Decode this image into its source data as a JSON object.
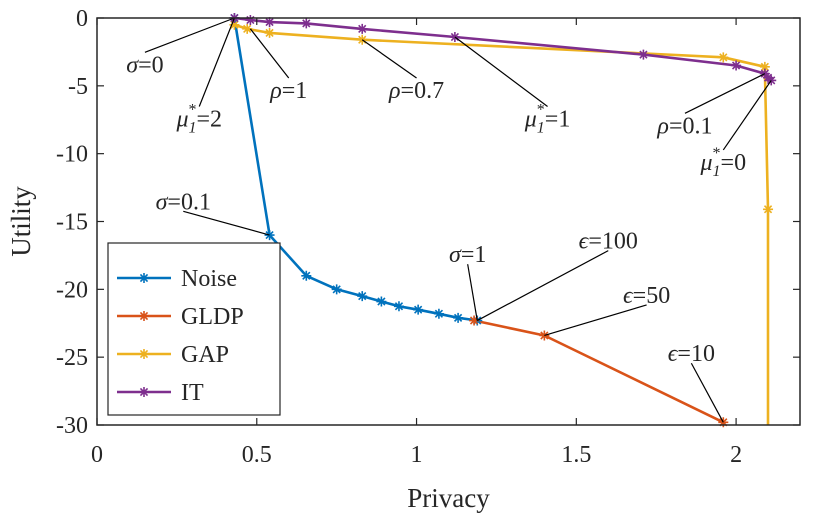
{
  "chart_data": {
    "type": "line",
    "title": "",
    "xlabel": "Privacy",
    "ylabel": "Utility",
    "xlim": [
      0,
      2.2
    ],
    "ylim": [
      -30,
      0
    ],
    "xticks": [
      0,
      0.5,
      1,
      1.5,
      2
    ],
    "xtick_labels": [
      "0",
      "0.5",
      "1",
      "1.5",
      "2"
    ],
    "yticks": [
      0,
      -5,
      -10,
      -15,
      -20,
      -25,
      -30
    ],
    "ytick_labels": [
      "0",
      "-5",
      "-10",
      "-15",
      "-20",
      "-25",
      "-30"
    ],
    "grid": false,
    "legend_position": "bottom-left",
    "series": [
      {
        "name": "Noise",
        "color": "#0072BD",
        "marker": "asterisk",
        "x": [
          0.43,
          0.54,
          0.655,
          0.75,
          0.83,
          0.89,
          0.945,
          1.005,
          1.07,
          1.13,
          1.19
        ],
        "y": [
          0,
          -16.0,
          -19.0,
          -20.0,
          -20.5,
          -20.9,
          -21.25,
          -21.5,
          -21.8,
          -22.1,
          -22.3
        ]
      },
      {
        "name": "GLDP",
        "color": "#D95319",
        "marker": "asterisk",
        "x": [
          1.18,
          1.4,
          1.96
        ],
        "y": [
          -22.3,
          -23.4,
          -29.8
        ]
      },
      {
        "name": "GAP",
        "color": "#EDB120",
        "marker": "asterisk",
        "x": [
          0.43,
          0.47,
          0.54,
          0.83,
          1.96,
          2.09,
          2.1,
          2.1
        ],
        "y": [
          -0.5,
          -0.8,
          -1.1,
          -1.6,
          -2.9,
          -3.6,
          -14.1,
          -30.0
        ],
        "marker_count": 7
      },
      {
        "name": "IT",
        "color": "#7E2F8E",
        "marker": "asterisk",
        "x": [
          0.43,
          0.48,
          0.54,
          0.655,
          0.83,
          1.12,
          1.71,
          2.0,
          2.09,
          2.1,
          2.11
        ],
        "y": [
          0,
          -0.15,
          -0.3,
          -0.4,
          -0.8,
          -1.4,
          -2.7,
          -3.5,
          -4.1,
          -4.4,
          -4.6
        ]
      }
    ],
    "annotations": [
      {
        "text": "σ=0",
        "point": [
          0.43,
          0
        ],
        "text_at": [
          0.15,
          -4.0
        ]
      },
      {
        "text": "μ₁*=2",
        "point": [
          0.43,
          0
        ],
        "text_at": [
          0.32,
          -8.0
        ]
      },
      {
        "text": "ρ=1",
        "point": [
          0.48,
          -0.8
        ],
        "text_at": [
          0.6,
          -5.9
        ]
      },
      {
        "text": "ρ=0.7",
        "point": [
          0.83,
          -1.6
        ],
        "text_at": [
          1.0,
          -5.9
        ]
      },
      {
        "text": "μ₁*=1",
        "point": [
          1.12,
          -1.4
        ],
        "text_at": [
          1.41,
          -8.0
        ]
      },
      {
        "text": "ρ=0.1",
        "point": [
          2.09,
          -4.1
        ],
        "text_at": [
          1.84,
          -8.5
        ]
      },
      {
        "text": "μ₁*=0",
        "point": [
          2.11,
          -4.6
        ],
        "text_at": [
          1.96,
          -11.2
        ]
      },
      {
        "text": "σ=0.1",
        "point": [
          0.54,
          -16.0
        ],
        "text_at": [
          0.27,
          -14.1
        ]
      },
      {
        "text": "σ=1",
        "point": [
          1.19,
          -22.3
        ],
        "text_at": [
          1.16,
          -18.0
        ]
      },
      {
        "text": "ϵ=100",
        "point": [
          1.19,
          -22.3
        ],
        "text_at": [
          1.6,
          -17.0
        ]
      },
      {
        "text": "ϵ=50",
        "point": [
          1.4,
          -23.4
        ],
        "text_at": [
          1.72,
          -21.0
        ]
      },
      {
        "text": "ϵ=10",
        "point": [
          1.96,
          -29.8
        ],
        "text_at": [
          1.86,
          -25.3
        ]
      }
    ]
  }
}
